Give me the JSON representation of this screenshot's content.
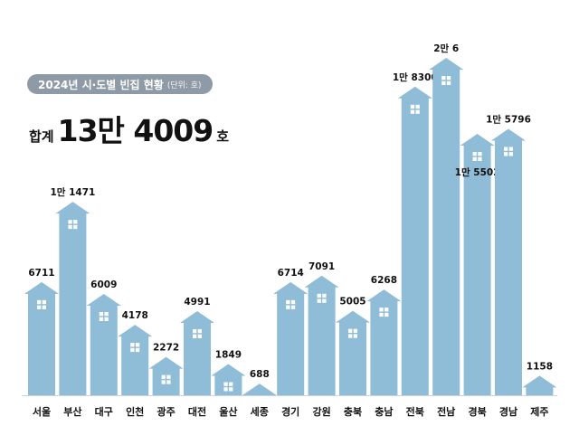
{
  "title": {
    "text": "2024년 시·도별 빈집 현황",
    "unit": "(단위: 호)"
  },
  "total": {
    "label": "합계",
    "value": "13만 4009",
    "unit": "호"
  },
  "colors": {
    "bar": "#8fbcd6",
    "window": "#ffffff",
    "baseline": "#c9d4dc",
    "pill": "#8e9aa6"
  },
  "chart_data": {
    "type": "bar",
    "title": "2024년 시·도별 빈집 현황",
    "xlabel": "",
    "ylabel": "",
    "ylim": [
      0,
      20006
    ],
    "grid": false,
    "categories": [
      "서울",
      "부산",
      "대구",
      "인천",
      "광주",
      "대전",
      "울산",
      "세종",
      "경기",
      "강원",
      "충북",
      "충남",
      "전북",
      "전남",
      "경북",
      "경남",
      "제주"
    ],
    "values": [
      6711,
      11471,
      6009,
      4178,
      2272,
      4991,
      1849,
      688,
      6714,
      7091,
      5005,
      6268,
      18300,
      20006,
      15502,
      15796,
      1158
    ],
    "data_labels": [
      "6711",
      "1만 1471",
      "6009",
      "4178",
      "2272",
      "4991",
      "1849",
      "688",
      "6714",
      "7091",
      "5005",
      "6268",
      "1만 8300",
      "2만 6",
      "1만 5502",
      "1만 5796",
      "1158"
    ]
  }
}
